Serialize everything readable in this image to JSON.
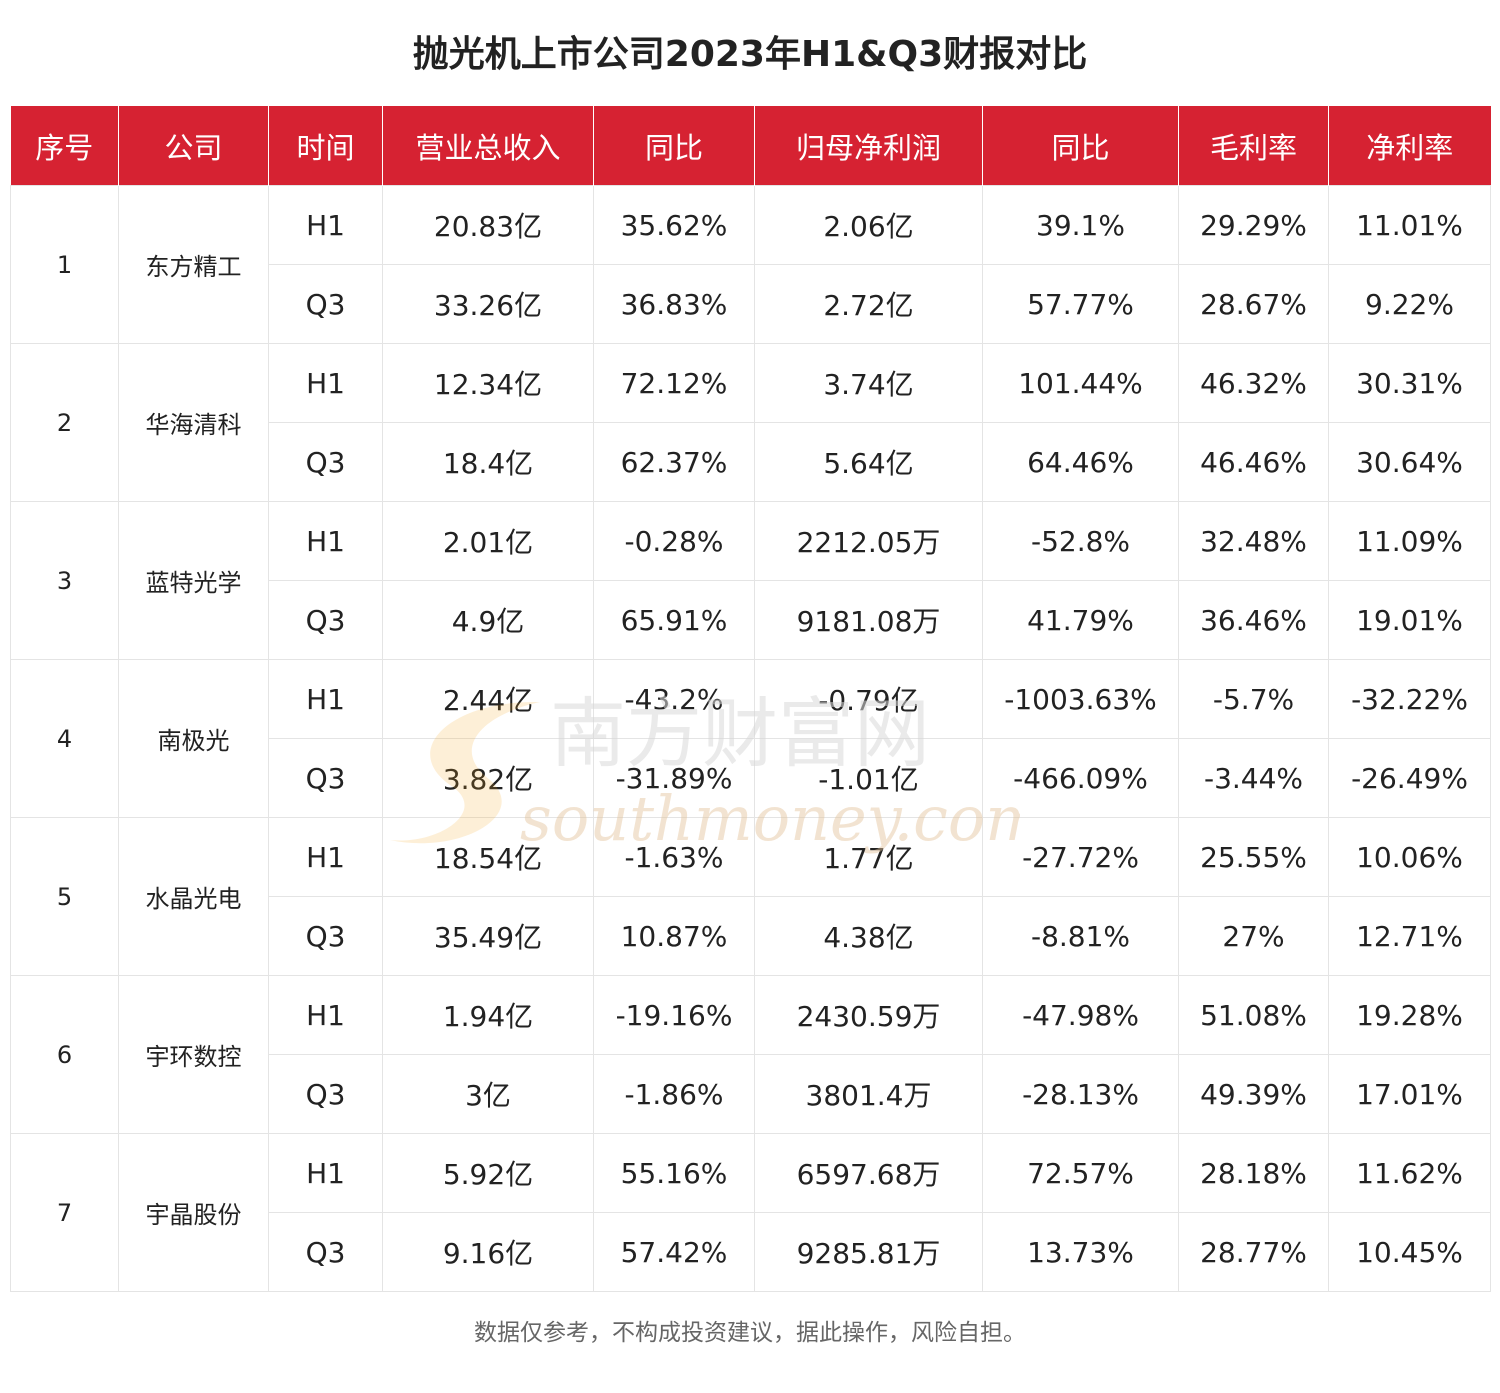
{
  "title": "抛光机上市公司2023年H1&Q3财报对比",
  "footer": "数据仅参考，不构成投资建议，据此操作，风险自担。",
  "watermark": {
    "cn": "南方财富网",
    "en": "southmoney.com"
  },
  "colors": {
    "header_bg": "#d62232",
    "header_text": "#ffffff",
    "border": "#e4e4e4",
    "watermark_orange": "#f5a623",
    "watermark_gray": "#d9d9d9"
  },
  "chart_data": {
    "type": "table",
    "title": "抛光机上市公司2023年H1&Q3财报对比",
    "columns": [
      "序号",
      "公司",
      "时间",
      "营业总收入",
      "同比",
      "归母净利润",
      "同比",
      "毛利率",
      "净利率"
    ],
    "rows": [
      {
        "no": "1",
        "company": "东方精工",
        "periods": [
          [
            "H1",
            "20.83亿",
            "35.62%",
            "2.06亿",
            "39.1%",
            "29.29%",
            "11.01%"
          ],
          [
            "Q3",
            "33.26亿",
            "36.83%",
            "2.72亿",
            "57.77%",
            "28.67%",
            "9.22%"
          ]
        ]
      },
      {
        "no": "2",
        "company": "华海清科",
        "periods": [
          [
            "H1",
            "12.34亿",
            "72.12%",
            "3.74亿",
            "101.44%",
            "46.32%",
            "30.31%"
          ],
          [
            "Q3",
            "18.4亿",
            "62.37%",
            "5.64亿",
            "64.46%",
            "46.46%",
            "30.64%"
          ]
        ]
      },
      {
        "no": "3",
        "company": "蓝特光学",
        "periods": [
          [
            "H1",
            "2.01亿",
            "-0.28%",
            "2212.05万",
            "-52.8%",
            "32.48%",
            "11.09%"
          ],
          [
            "Q3",
            "4.9亿",
            "65.91%",
            "9181.08万",
            "41.79%",
            "36.46%",
            "19.01%"
          ]
        ]
      },
      {
        "no": "4",
        "company": "南极光",
        "periods": [
          [
            "H1",
            "2.44亿",
            "-43.2%",
            "-0.79亿",
            "-1003.63%",
            "-5.7%",
            "-32.22%"
          ],
          [
            "Q3",
            "3.82亿",
            "-31.89%",
            "-1.01亿",
            "-466.09%",
            "-3.44%",
            "-26.49%"
          ]
        ]
      },
      {
        "no": "5",
        "company": "水晶光电",
        "periods": [
          [
            "H1",
            "18.54亿",
            "-1.63%",
            "1.77亿",
            "-27.72%",
            "25.55%",
            "10.06%"
          ],
          [
            "Q3",
            "35.49亿",
            "10.87%",
            "4.38亿",
            "-8.81%",
            "27%",
            "12.71%"
          ]
        ]
      },
      {
        "no": "6",
        "company": "宇环数控",
        "periods": [
          [
            "H1",
            "1.94亿",
            "-19.16%",
            "2430.59万",
            "-47.98%",
            "51.08%",
            "19.28%"
          ],
          [
            "Q3",
            "3亿",
            "-1.86%",
            "3801.4万",
            "-28.13%",
            "49.39%",
            "17.01%"
          ]
        ]
      },
      {
        "no": "7",
        "company": "宇晶股份",
        "periods": [
          [
            "H1",
            "5.92亿",
            "55.16%",
            "6597.68万",
            "72.57%",
            "28.18%",
            "11.62%"
          ],
          [
            "Q3",
            "9.16亿",
            "57.42%",
            "9285.81万",
            "13.73%",
            "28.77%",
            "10.45%"
          ]
        ]
      }
    ]
  }
}
